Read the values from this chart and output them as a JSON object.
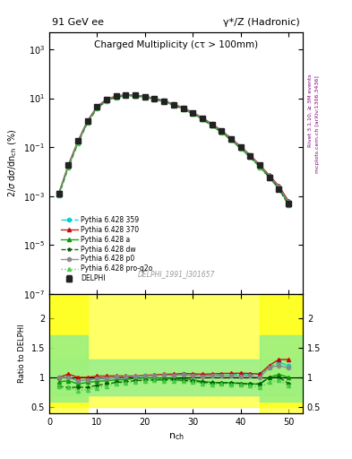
{
  "title_left": "91 GeV ee",
  "title_right": "γ*/Z (Hadronic)",
  "plot_title": "Charged Multiplicity (cτ > 100mm)",
  "ylabel_top": "2/σ dσ/dn_{ch} (%)",
  "ylabel_bottom": "Ratio to DELPHI",
  "xlabel": "n_{ch}",
  "watermark": "DELPHI_1991_I301657",
  "right_label": "Rivet 3.1.10, ≥ 3M events",
  "right_label2": "mcplots.cern.ch [arXiv:1306.3436]",
  "nch": [
    2,
    4,
    6,
    8,
    10,
    12,
    14,
    16,
    18,
    20,
    22,
    24,
    26,
    28,
    30,
    32,
    34,
    36,
    38,
    40,
    42,
    44,
    46,
    48,
    50
  ],
  "delphi_y": [
    0.0013,
    0.018,
    0.18,
    1.2,
    4.5,
    9.0,
    12.0,
    13.5,
    13.0,
    11.5,
    9.5,
    7.5,
    5.5,
    3.8,
    2.5,
    1.5,
    0.85,
    0.45,
    0.22,
    0.1,
    0.045,
    0.018,
    0.006,
    0.002,
    0.0005
  ],
  "delphi_err": [
    0.0003,
    0.003,
    0.02,
    0.1,
    0.3,
    0.5,
    0.5,
    0.5,
    0.5,
    0.4,
    0.3,
    0.3,
    0.2,
    0.15,
    0.1,
    0.07,
    0.04,
    0.02,
    0.01,
    0.006,
    0.003,
    0.001,
    0.0005,
    0.0002,
    0.0001
  ],
  "py359_y": [
    0.0013,
    0.018,
    0.17,
    1.15,
    4.4,
    8.8,
    12.0,
    13.5,
    13.2,
    11.8,
    9.8,
    7.8,
    5.7,
    4.0,
    2.6,
    1.55,
    0.88,
    0.47,
    0.23,
    0.105,
    0.047,
    0.019,
    0.007,
    0.0025,
    0.0006
  ],
  "py370_y": [
    0.0013,
    0.019,
    0.18,
    1.2,
    4.6,
    9.2,
    12.3,
    13.8,
    13.3,
    11.9,
    9.9,
    7.9,
    5.8,
    4.05,
    2.65,
    1.58,
    0.9,
    0.48,
    0.235,
    0.107,
    0.048,
    0.019,
    0.0072,
    0.0026,
    0.00065
  ],
  "pya_y": [
    0.0012,
    0.017,
    0.16,
    1.1,
    4.2,
    8.5,
    11.5,
    13.0,
    12.8,
    11.4,
    9.4,
    7.4,
    5.4,
    3.7,
    2.4,
    1.4,
    0.78,
    0.41,
    0.2,
    0.09,
    0.04,
    0.016,
    0.006,
    0.0021,
    0.0005
  ],
  "pydw_y": [
    0.0011,
    0.015,
    0.15,
    1.0,
    3.9,
    8.0,
    11.0,
    12.5,
    12.3,
    11.0,
    9.1,
    7.2,
    5.3,
    3.6,
    2.35,
    1.38,
    0.77,
    0.41,
    0.2,
    0.09,
    0.04,
    0.016,
    0.006,
    0.002,
    0.00045
  ],
  "pyp0_y": [
    0.0013,
    0.018,
    0.17,
    1.15,
    4.4,
    8.9,
    12.1,
    13.6,
    13.2,
    11.8,
    9.8,
    7.8,
    5.7,
    3.95,
    2.57,
    1.53,
    0.87,
    0.46,
    0.225,
    0.102,
    0.046,
    0.018,
    0.007,
    0.0024,
    0.00058
  ],
  "pyproq2o_y": [
    0.0011,
    0.015,
    0.14,
    0.95,
    3.7,
    7.7,
    10.7,
    12.2,
    12.0,
    10.8,
    9.0,
    7.1,
    5.2,
    3.55,
    2.3,
    1.35,
    0.75,
    0.4,
    0.195,
    0.088,
    0.039,
    0.015,
    0.0055,
    0.0019,
    0.00043
  ],
  "colors": {
    "delphi": "#222222",
    "py359": "#00cccc",
    "py370": "#cc0000",
    "pya": "#009900",
    "pydw": "#005500",
    "pyp0": "#888888",
    "pyproq2o": "#44cc44"
  },
  "main_ylim": [
    1e-07,
    5000
  ],
  "xlim": [
    0,
    53
  ],
  "ratio_ylim": [
    0.4,
    2.4
  ],
  "ratio_yticks": [
    0.5,
    1.0,
    1.5,
    2.0
  ],
  "ratio_yticklabels": [
    "0.5",
    "1",
    "1.5",
    "2"
  ]
}
